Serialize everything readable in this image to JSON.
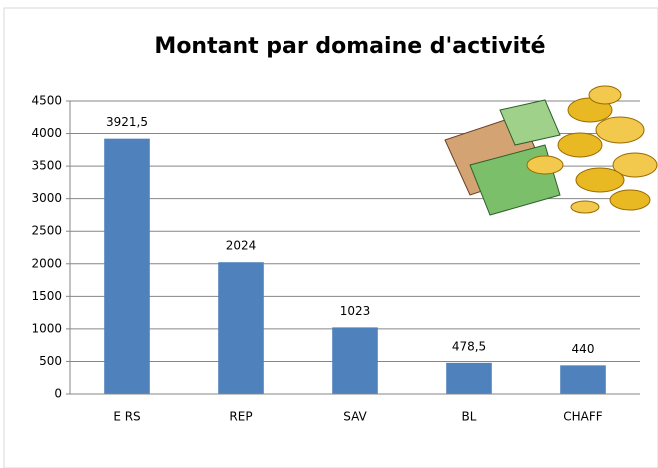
{
  "chart_data": {
    "type": "bar",
    "title": "Montant par domaine d'activité",
    "categories": [
      "E RS",
      "REP",
      "SAV",
      "BL",
      "CHAFF"
    ],
    "values": [
      3921.5,
      2024,
      1023,
      478.5,
      440
    ],
    "value_labels": [
      "3921,5",
      "2024",
      "1023",
      "478,5",
      "440"
    ],
    "color": "#4f81bd",
    "ylim": [
      0,
      4500
    ],
    "yticks": [
      0,
      500,
      1000,
      1500,
      2000,
      2500,
      3000,
      3500,
      4000,
      4500
    ],
    "grid": true
  }
}
